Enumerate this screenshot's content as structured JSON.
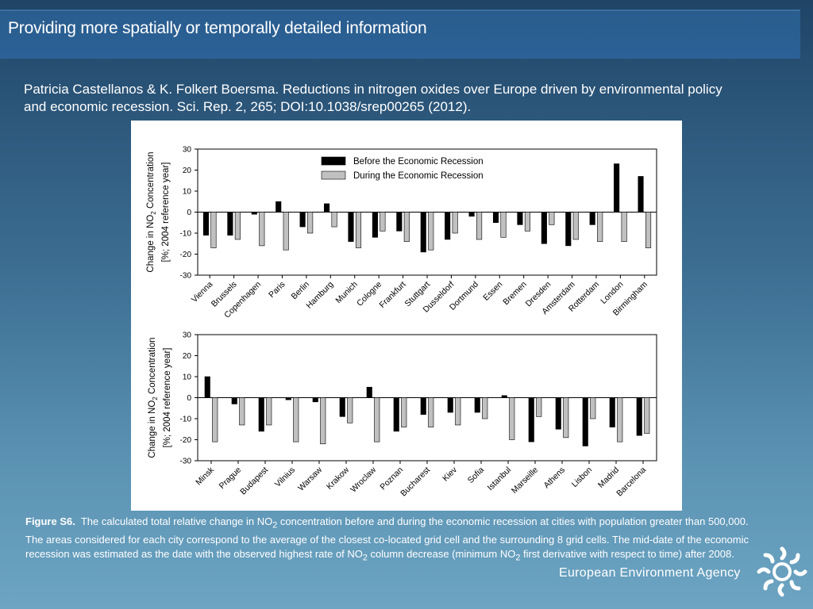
{
  "header": {
    "title": "Providing more spatially or temporally detailed information"
  },
  "citation": "Patricia Castellanos & K. Folkert Boersma. Reductions in nitrogen oxides over Europe driven by environmental policy and economic recession. Sci. Rep. 2, 265; DOI:10.1038/srep00265 (2012).",
  "caption": {
    "label": "Figure S6.",
    "parts": [
      "The calculated total relative change in NO",
      "2",
      " concentration before and during the economic recession at cities with population greater than 500,000. The areas considered for each city correspond to the average of the closest co-located grid cell and the surrounding 8 grid cells.  The mid-date of the economic recession was estimated as the date with the observed highest rate of NO",
      "2",
      " column decrease (minimum NO",
      "2",
      " first derivative with respect to time) after 2008."
    ]
  },
  "footer": {
    "agency": "European Environment Agency",
    "logo_icon": "eea-sun-icon"
  },
  "colors": {
    "before": "#000000",
    "during": "#c0c0c0",
    "axis": "#000000"
  },
  "chart_data": [
    {
      "type": "bar",
      "ylabel_line1": "Change in NO",
      "ylabel_sub": "2",
      "ylabel_line1_tail": " Concentration",
      "ylabel_line2": "[%; 2004 reference year]",
      "ylim": [
        -30,
        30
      ],
      "yticks": [
        -30,
        -20,
        -10,
        0,
        10,
        20,
        30
      ],
      "legend": {
        "position": "top-center",
        "entries": [
          "Before the Economic Recession",
          "During the Economic Recession"
        ]
      },
      "categories": [
        "Vienna",
        "Brussels",
        "Copenhagen",
        "Paris",
        "Berlin",
        "Hamburg",
        "Munich",
        "Cologne",
        "Frankfurt",
        "Stuttgart",
        "Dusseldorf",
        "Dortmund",
        "Essen",
        "Bremen",
        "Dresden",
        "Amsterdam",
        "Rotterdam",
        "London",
        "Birmingham"
      ],
      "series": [
        {
          "name": "Before the Economic Recession",
          "values": [
            -11,
            -11,
            -1,
            5,
            -7,
            4,
            -14,
            -12,
            -9,
            -19,
            -13,
            -2,
            -5,
            -6,
            -15,
            -16,
            -6,
            23,
            17
          ]
        },
        {
          "name": "During the Economic Recession",
          "values": [
            -17,
            -13,
            -16,
            -18,
            -10,
            -7,
            -17,
            -9,
            -14,
            -18,
            -10,
            -13,
            -12,
            -9,
            -6,
            -13,
            -14,
            -14,
            -17
          ]
        }
      ]
    },
    {
      "type": "bar",
      "ylabel_line1": "Change in NO",
      "ylabel_sub": "2",
      "ylabel_line1_tail": " Concentration",
      "ylabel_line2": "[%; 2004 reference year]",
      "ylim": [
        -30,
        30
      ],
      "yticks": [
        -30,
        -20,
        -10,
        0,
        10,
        20,
        30
      ],
      "categories": [
        "Minsk",
        "Prague",
        "Budapest",
        "Vilnius",
        "Warsaw",
        "Krakow",
        "Wroclaw",
        "Poznan",
        "Bucharest",
        "Kiev",
        "Sofia",
        "Istanbul",
        "Marseille",
        "Athens",
        "Lisbon",
        "Madrid",
        "Barcelona"
      ],
      "series": [
        {
          "name": "Before the Economic Recession",
          "values": [
            10,
            -3,
            -16,
            -1,
            -2,
            -9,
            5,
            -16,
            -8,
            -7,
            -7,
            1,
            -21,
            -15,
            -23,
            -14,
            -18
          ]
        },
        {
          "name": "During the Economic Recession",
          "values": [
            -21,
            -13,
            -13,
            -21,
            -22,
            -12,
            -21,
            -14,
            -14,
            -13,
            -10,
            -20,
            -9,
            -19,
            -10,
            -21,
            -17
          ]
        }
      ]
    }
  ]
}
